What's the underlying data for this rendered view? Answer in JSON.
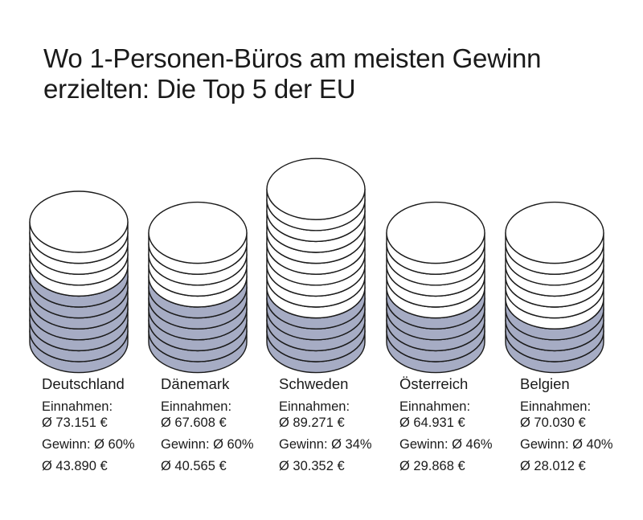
{
  "title": {
    "line1": "Wo 1-Personen-Büros am meisten Gewinn",
    "line2": "erzielten: Die Top 5 der EU"
  },
  "colors": {
    "coin_fill": "#ffffff",
    "gewinn_fill": "#a6acc4",
    "stroke": "#1a1a1a"
  },
  "chart_data": {
    "type": "bar",
    "title": "Wo 1-Personen-Büros am meisten Gewinn erzielten: Die Top 5 der EU",
    "categories": [
      "Deutschland",
      "Dänemark",
      "Schweden",
      "Österreich",
      "Belgien"
    ],
    "series": [
      {
        "name": "Einnahmen",
        "values": [
          73151,
          67608,
          89271,
          64931,
          70030
        ]
      },
      {
        "name": "Gewinn",
        "values": [
          43890,
          40565,
          30352,
          29868,
          28012
        ]
      }
    ],
    "gewinn_percent": [
      60,
      60,
      34,
      46,
      40
    ],
    "items": [
      {
        "country": "Deutschland",
        "einnahmen_label": "Einnahmen:",
        "einnahmen_value": "Ø 73.151 €",
        "gewinn_label": "Gewinn: Ø 60%",
        "gewinn_value": "Ø 43.890 €",
        "coins": 11,
        "gewinn_coins": 7
      },
      {
        "country": "Dänemark",
        "einnahmen_label": "Einnahmen:",
        "einnahmen_value": "Ø 67.608 €",
        "gewinn_label": "Gewinn: Ø 60%",
        "gewinn_value": "Ø 40.565 €",
        "coins": 10,
        "gewinn_coins": 6
      },
      {
        "country": "Schweden",
        "einnahmen_label": "Einnahmen:",
        "einnahmen_value": "Ø 89.271 €",
        "gewinn_label": "Gewinn: Ø 34%",
        "gewinn_value": "Ø 30.352 €",
        "coins": 14,
        "gewinn_coins": 5
      },
      {
        "country": "Österreich",
        "einnahmen_label": "Einnahmen:",
        "einnahmen_value": "Ø 64.931 €",
        "gewinn_label": "Gewinn: Ø 46%",
        "gewinn_value": "Ø 29.868 €",
        "coins": 10,
        "gewinn_coins": 5
      },
      {
        "country": "Belgien",
        "einnahmen_label": "Einnahmen:",
        "einnahmen_value": "Ø 70.030 €",
        "gewinn_label": "Gewinn: Ø 40%",
        "gewinn_value": "Ø 28.012 €",
        "coins": 10,
        "gewinn_coins": 4
      }
    ]
  }
}
